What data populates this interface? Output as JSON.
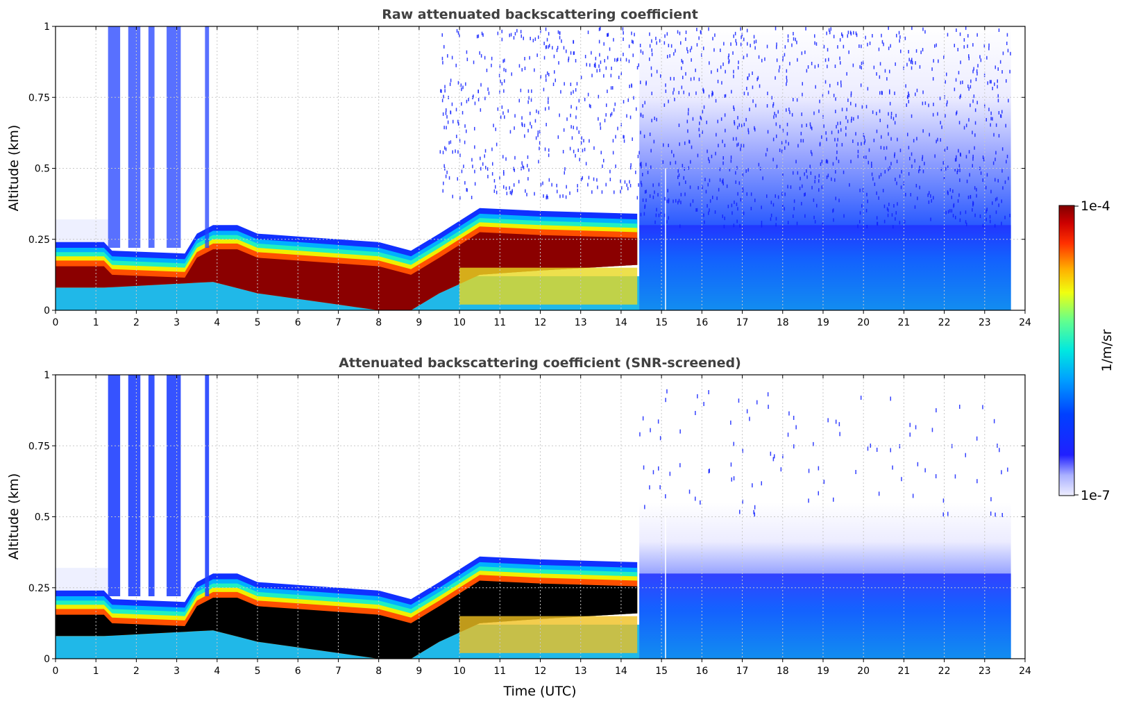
{
  "chart_data": [
    {
      "type": "heatmap",
      "title": "Raw attenuated backscattering coefficient",
      "xlabel": "",
      "ylabel": "Altitude (km)",
      "xlim": [
        0,
        24
      ],
      "ylim": [
        0,
        1
      ],
      "xticks": [
        "0",
        "1",
        "2",
        "3",
        "4",
        "5",
        "6",
        "7",
        "8",
        "9",
        "10",
        "11",
        "12",
        "13",
        "14",
        "15",
        "16",
        "17",
        "18",
        "19",
        "20",
        "21",
        "22",
        "23",
        "24"
      ],
      "yticks": [
        "0",
        "0.25",
        "0.5",
        "0.75",
        "1"
      ],
      "ytick_values": [
        0,
        0.25,
        0.5,
        0.75,
        1
      ],
      "data_end_time": 23.65,
      "regime_change_time": 14.45,
      "boundary_layer_top_km": [
        {
          "t": 0,
          "v": 0.24
        },
        {
          "t": 1.2,
          "v": 0.24
        },
        {
          "t": 3.9,
          "v": 0.3
        },
        {
          "t": 5,
          "v": 0.27
        },
        {
          "t": 7,
          "v": 0.25
        },
        {
          "t": 8.8,
          "v": 0.21
        },
        {
          "t": 10.5,
          "v": 0.35
        },
        {
          "t": 14.4,
          "v": 0.34
        }
      ],
      "grid": true
    },
    {
      "type": "heatmap",
      "title": "Attenuated backscattering coefficient (SNR-screened)",
      "xlabel": "Time (UTC)",
      "ylabel": "Altitude (km)",
      "xlim": [
        0,
        24
      ],
      "ylim": [
        0,
        1
      ],
      "xticks": [
        "0",
        "1",
        "2",
        "3",
        "4",
        "5",
        "6",
        "7",
        "8",
        "9",
        "10",
        "11",
        "12",
        "13",
        "14",
        "15",
        "16",
        "17",
        "18",
        "19",
        "20",
        "21",
        "22",
        "23",
        "24"
      ],
      "yticks": [
        "0",
        "0.25",
        "0.5",
        "0.75",
        "1"
      ],
      "ytick_values": [
        0,
        0.25,
        0.5,
        0.75,
        1
      ],
      "data_end_time": 23.65,
      "regime_change_time": 14.45,
      "grid": true
    }
  ],
  "colorbar": {
    "label": "1/m/sr",
    "max_label": "1e-4",
    "min_label": "1e-7",
    "scale": "log",
    "range": [
      1e-07,
      0.0001
    ]
  }
}
